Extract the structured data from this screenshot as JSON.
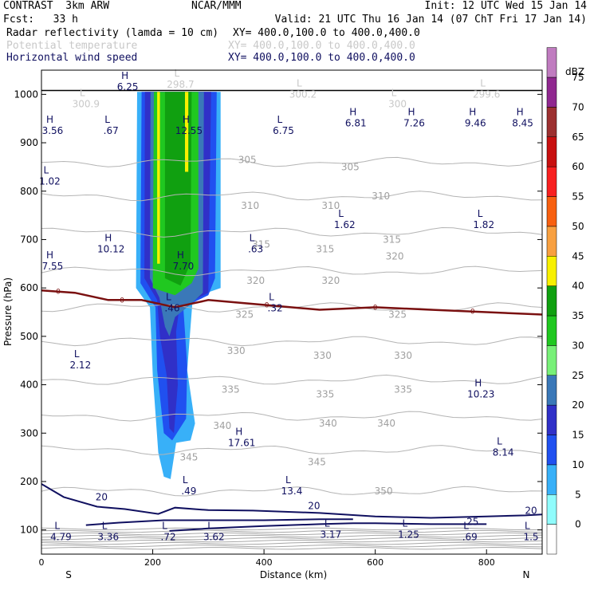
{
  "header": {
    "model": "CONTRAST  3km ARW",
    "center": "NCAR/MMM",
    "init": "Init: 12 UTC Wed 15 Jan 14",
    "fcst": "Fcst:   33 h",
    "valid": "Valid: 21 UTC Thu 16 Jan 14 (07 ChT Fri 17 Jan 14)",
    "fields": [
      {
        "name": "Radar reflectivity (lamda = 10 cm)",
        "xy": "XY= 400.0,100.0 to 400.0,400.0",
        "color": "#000000"
      },
      {
        "name": "Potential temperature",
        "xy": "XY= 400.0,100.0 to 400.0,400.0",
        "color": "#c8c8c8"
      },
      {
        "name": "Horizontal wind speed",
        "xy": "XY= 400.0,100.0 to 400.0,400.0",
        "color": "#101060"
      }
    ]
  },
  "chart_data": {
    "type": "contour",
    "xlabel": "Distance (km)",
    "ylabel": "Pressure (hPa)",
    "xlim": [
      0,
      900
    ],
    "ylim": [
      1050,
      50
    ],
    "x_ticks": [
      0,
      200,
      400,
      600,
      800
    ],
    "y_ticks": [
      100,
      200,
      300,
      400,
      500,
      600,
      700,
      800,
      900,
      1000
    ],
    "x_end_labels": {
      "left": "S",
      "right": "N"
    },
    "colorbar": {
      "unit": "dBZ",
      "levels": [
        0,
        5,
        10,
        15,
        20,
        25,
        30,
        35,
        40,
        45,
        50,
        55,
        60,
        65,
        70,
        75
      ],
      "colors": [
        "#ffffff",
        "#90fcfc",
        "#38b0f8",
        "#2050f0",
        "#3030c8",
        "#3a78b8",
        "#78f078",
        "#20c820",
        "#10a010",
        "#f8f000",
        "#f8a040",
        "#f86010",
        "#f82020",
        "#c81010",
        "#9c3030",
        "#902890",
        "#c07cc0"
      ]
    },
    "reflectivity_regions": [
      {
        "level": 5,
        "polygon": [
          [
            172,
            1005
          ],
          [
            170,
            600
          ],
          [
            195,
            560
          ],
          [
            200,
            420
          ],
          [
            210,
            260
          ],
          [
            220,
            210
          ],
          [
            232,
            205
          ],
          [
            242,
            280
          ],
          [
            268,
            285
          ],
          [
            276,
            320
          ],
          [
            262,
            430
          ],
          [
            272,
            580
          ],
          [
            322,
            600
          ],
          [
            322,
            1005
          ]
        ]
      },
      {
        "level": 10,
        "polygon": [
          [
            180,
            1005
          ],
          [
            178,
            610
          ],
          [
            205,
            560
          ],
          [
            208,
            430
          ],
          [
            220,
            300
          ],
          [
            235,
            285
          ],
          [
            260,
            330
          ],
          [
            262,
            440
          ],
          [
            255,
            560
          ],
          [
            300,
            585
          ],
          [
            312,
            620
          ],
          [
            315,
            1005
          ]
        ]
      },
      {
        "level": 15,
        "polygon": [
          [
            186,
            1005
          ],
          [
            185,
            620
          ],
          [
            208,
            575
          ],
          [
            213,
            500
          ],
          [
            225,
            420
          ],
          [
            230,
            310
          ],
          [
            238,
            300
          ],
          [
            245,
            400
          ],
          [
            242,
            510
          ],
          [
            248,
            560
          ],
          [
            300,
            590
          ],
          [
            305,
            1005
          ]
        ]
      },
      {
        "level": 20,
        "polygon": [
          [
            196,
            1005
          ],
          [
            195,
            620
          ],
          [
            212,
            580
          ],
          [
            222,
            520
          ],
          [
            230,
            500
          ],
          [
            240,
            540
          ],
          [
            262,
            560
          ],
          [
            290,
            590
          ],
          [
            292,
            1005
          ]
        ]
      },
      {
        "level": 30,
        "polygon": [
          [
            202,
            1005
          ],
          [
            200,
            600
          ],
          [
            240,
            585
          ],
          [
            270,
            610
          ],
          [
            282,
            640
          ],
          [
            282,
            1005
          ]
        ]
      },
      {
        "level": 35,
        "polygon": [
          [
            222,
            1005
          ],
          [
            222,
            620
          ],
          [
            250,
            605
          ],
          [
            268,
            650
          ],
          [
            270,
            1005
          ]
        ]
      },
      {
        "level": 40,
        "polygon": [
          [
            208,
            1005
          ],
          [
            208,
            650
          ],
          [
            213,
            650
          ],
          [
            213,
            1005
          ]
        ]
      },
      {
        "level": 40,
        "polygon": [
          [
            258,
            1005
          ],
          [
            258,
            840
          ],
          [
            264,
            840
          ],
          [
            264,
            1005
          ]
        ]
      }
    ],
    "theta_contours": [
      {
        "label": "350",
        "p": 180
      },
      {
        "label": "345",
        "p": 265
      },
      {
        "label": "340",
        "p": 335
      },
      {
        "label": "335",
        "p": 410
      },
      {
        "label": "330",
        "p": 490
      },
      {
        "label": "325",
        "p": 560
      },
      {
        "label": "320",
        "p": 635
      },
      {
        "label": "315",
        "p": 715
      },
      {
        "label": "310",
        "p": 790
      },
      {
        "label": "305",
        "p": 860
      }
    ],
    "theta_labels": [
      {
        "text": "350",
        "x": 615,
        "p": 180
      },
      {
        "text": "345",
        "x": 265,
        "p": 250
      },
      {
        "text": "345",
        "x": 495,
        "p": 240
      },
      {
        "text": "340",
        "x": 325,
        "p": 315
      },
      {
        "text": "340",
        "x": 515,
        "p": 320
      },
      {
        "text": "340",
        "x": 620,
        "p": 320
      },
      {
        "text": "335",
        "x": 340,
        "p": 390
      },
      {
        "text": "335",
        "x": 510,
        "p": 380
      },
      {
        "text": "335",
        "x": 650,
        "p": 390
      },
      {
        "text": "330",
        "x": 350,
        "p": 470
      },
      {
        "text": "330",
        "x": 505,
        "p": 460
      },
      {
        "text": "330",
        "x": 650,
        "p": 460
      },
      {
        "text": "325",
        "x": 365,
        "p": 545
      },
      {
        "text": "325",
        "x": 640,
        "p": 545
      },
      {
        "text": "320",
        "x": 385,
        "p": 615
      },
      {
        "text": "320",
        "x": 520,
        "p": 615
      },
      {
        "text": "320",
        "x": 635,
        "p": 665
      },
      {
        "text": "315",
        "x": 395,
        "p": 690
      },
      {
        "text": "315",
        "x": 510,
        "p": 680
      },
      {
        "text": "315",
        "x": 630,
        "p": 700
      },
      {
        "text": "310",
        "x": 375,
        "p": 770
      },
      {
        "text": "310",
        "x": 520,
        "p": 770
      },
      {
        "text": "310",
        "x": 610,
        "p": 790
      },
      {
        "text": "305",
        "x": 370,
        "p": 865
      },
      {
        "text": "305",
        "x": 555,
        "p": 850
      }
    ],
    "freezing_line": [
      [
        0,
        595
      ],
      [
        60,
        590
      ],
      [
        120,
        575
      ],
      [
        180,
        575
      ],
      [
        240,
        560
      ],
      [
        300,
        575
      ],
      [
        400,
        565
      ],
      [
        500,
        555
      ],
      [
        600,
        560
      ],
      [
        700,
        555
      ],
      [
        800,
        550
      ],
      [
        900,
        545
      ]
    ],
    "freezing_label": "0",
    "wind_contours": [
      {
        "label": "20",
        "points": [
          [
            0,
            195
          ],
          [
            40,
            168
          ],
          [
            100,
            148
          ],
          [
            150,
            143
          ],
          [
            210,
            133
          ],
          [
            240,
            146
          ],
          [
            300,
            141
          ],
          [
            380,
            140
          ],
          [
            500,
            135
          ],
          [
            600,
            128
          ],
          [
            700,
            125
          ],
          [
            800,
            128
          ],
          [
            870,
            130
          ],
          [
            900,
            132
          ]
        ]
      },
      {
        "label": "25",
        "points": [
          [
            230,
            98
          ],
          [
            300,
            103
          ],
          [
            400,
            108
          ],
          [
            500,
            112
          ],
          [
            560,
            114
          ],
          [
            600,
            114
          ],
          [
            700,
            112
          ],
          [
            800,
            112
          ]
        ]
      },
      {
        "label": "25",
        "points": [
          [
            80,
            110
          ],
          [
            140,
            115
          ],
          [
            220,
            120
          ],
          [
            300,
            120
          ],
          [
            400,
            120
          ],
          [
            500,
            122
          ],
          [
            560,
            122
          ]
        ]
      }
    ],
    "wind_labels": [
      {
        "text": "20",
        "x": 108,
        "p": 168
      },
      {
        "text": "20",
        "x": 490,
        "p": 150
      },
      {
        "text": "20",
        "x": 880,
        "p": 140
      },
      {
        "text": "25",
        "x": 775,
        "p": 117
      }
    ],
    "high_low_labels": [
      {
        "type": "L",
        "value": "4.79",
        "x": 35,
        "p": 95,
        "color": "#101060"
      },
      {
        "type": "L",
        "value": "3.36",
        "x": 120,
        "p": 95,
        "color": "#101060"
      },
      {
        "type": "L",
        "value": ".72",
        "x": 228,
        "p": 95,
        "color": "#101060"
      },
      {
        "type": "L",
        "value": "3.62",
        "x": 310,
        "p": 95,
        "color": "#101060"
      },
      {
        "type": "L",
        "value": "3.17",
        "x": 520,
        "p": 100,
        "color": "#101060"
      },
      {
        "type": "L",
        "value": "1.25",
        "x": 660,
        "p": 100,
        "color": "#101060"
      },
      {
        "type": "L",
        "value": ".69",
        "x": 770,
        "p": 95,
        "color": "#101060"
      },
      {
        "type": "L",
        "value": "1.5",
        "x": 880,
        "p": 95,
        "color": "#101060"
      },
      {
        "type": "L",
        "value": ".49",
        "x": 265,
        "p": 190,
        "color": "#101060"
      },
      {
        "type": "L",
        "value": "13.4",
        "x": 450,
        "p": 190,
        "color": "#101060"
      },
      {
        "type": "H",
        "value": "17.61",
        "x": 360,
        "p": 290,
        "color": "#101060"
      },
      {
        "type": "L",
        "value": "8.14",
        "x": 830,
        "p": 270,
        "color": "#101060"
      },
      {
        "type": "H",
        "value": "10.23",
        "x": 790,
        "p": 390,
        "color": "#101060"
      },
      {
        "type": "L",
        "value": "2.12",
        "x": 70,
        "p": 450,
        "color": "#101060"
      },
      {
        "type": "L",
        "value": ".46",
        "x": 235,
        "p": 568,
        "color": "#101060"
      },
      {
        "type": "L",
        "value": ".32",
        "x": 420,
        "p": 568,
        "color": "#101060"
      },
      {
        "type": "H",
        "value": "7.55",
        "x": 20,
        "p": 655,
        "color": "#101060"
      },
      {
        "type": "H",
        "value": "7.70",
        "x": 255,
        "p": 655,
        "color": "#101060"
      },
      {
        "type": "H",
        "value": "10.12",
        "x": 125,
        "p": 690,
        "color": "#101060"
      },
      {
        "type": "L",
        "value": ".63",
        "x": 385,
        "p": 690,
        "color": "#101060"
      },
      {
        "type": "L",
        "value": "1.62",
        "x": 545,
        "p": 740,
        "color": "#101060"
      },
      {
        "type": "L",
        "value": "1.82",
        "x": 795,
        "p": 740,
        "color": "#101060"
      },
      {
        "type": "L",
        "value": "1.02",
        "x": 15,
        "p": 830,
        "color": "#101060"
      },
      {
        "type": "H",
        "value": "3.56",
        "x": 20,
        "p": 935,
        "color": "#101060"
      },
      {
        "type": "L",
        "value": ".67",
        "x": 125,
        "p": 935,
        "color": "#101060"
      },
      {
        "type": "H",
        "value": "12.55",
        "x": 265,
        "p": 935,
        "color": "#101060"
      },
      {
        "type": "L",
        "value": "6.75",
        "x": 435,
        "p": 935,
        "color": "#101060"
      },
      {
        "type": "H",
        "value": "6.81",
        "x": 565,
        "p": 950,
        "color": "#101060"
      },
      {
        "type": "H",
        "value": "7.26",
        "x": 670,
        "p": 950,
        "color": "#101060"
      },
      {
        "type": "H",
        "value": "9.46",
        "x": 780,
        "p": 950,
        "color": "#101060"
      },
      {
        "type": "H",
        "value": "8.45",
        "x": 865,
        "p": 950,
        "color": "#101060"
      },
      {
        "type": "H",
        "value": "6.25",
        "x": 155,
        "p": 1025,
        "color": "#101060"
      },
      {
        "type": "L",
        "value": "300.9",
        "x": 80,
        "p": 990,
        "color": "#c8c8c8"
      },
      {
        "type": "L",
        "value": "300.2",
        "x": 470,
        "p": 1010,
        "color": "#c8c8c8"
      },
      {
        "type": "L",
        "value": "300",
        "x": 640,
        "p": 990,
        "color": "#c8c8c8"
      },
      {
        "type": "L",
        "value": "299.6",
        "x": 800,
        "p": 1010,
        "color": "#c8c8c8"
      },
      {
        "type": "L",
        "value": "298.7",
        "x": 250,
        "p": 1030,
        "color": "#c8c8c8"
      }
    ],
    "ground_pressure": 1008
  }
}
